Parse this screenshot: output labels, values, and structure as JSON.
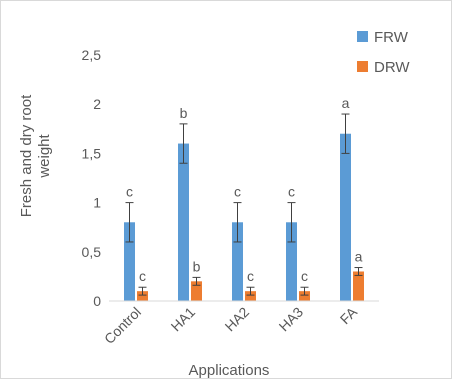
{
  "chart_data": {
    "type": "bar",
    "categories": [
      "Control",
      "HA1",
      "HA2",
      "HA3",
      "FA"
    ],
    "series": [
      {
        "name": "FRW",
        "color": "#5b9bd5",
        "values": [
          0.8,
          1.6,
          0.8,
          0.8,
          1.7
        ],
        "errors": [
          0.2,
          0.2,
          0.2,
          0.2,
          0.2
        ],
        "letters": [
          "c",
          "b",
          "c",
          "c",
          "a"
        ]
      },
      {
        "name": "DRW",
        "color": "#ed7d31",
        "values": [
          0.1,
          0.2,
          0.1,
          0.1,
          0.3
        ],
        "errors": [
          0.04,
          0.04,
          0.04,
          0.04,
          0.04
        ],
        "letters": [
          "c",
          "b",
          "c",
          "c",
          "a"
        ]
      }
    ],
    "yticks": [
      "0",
      "0,5",
      "1",
      "1,5",
      "2",
      "2,5"
    ],
    "ylim": [
      0,
      2.5
    ],
    "xlabel": "Applications",
    "ylabel_line1": "Fresh and dry root",
    "ylabel_line2": "weight",
    "legend_position": "top-right",
    "grid": false
  }
}
